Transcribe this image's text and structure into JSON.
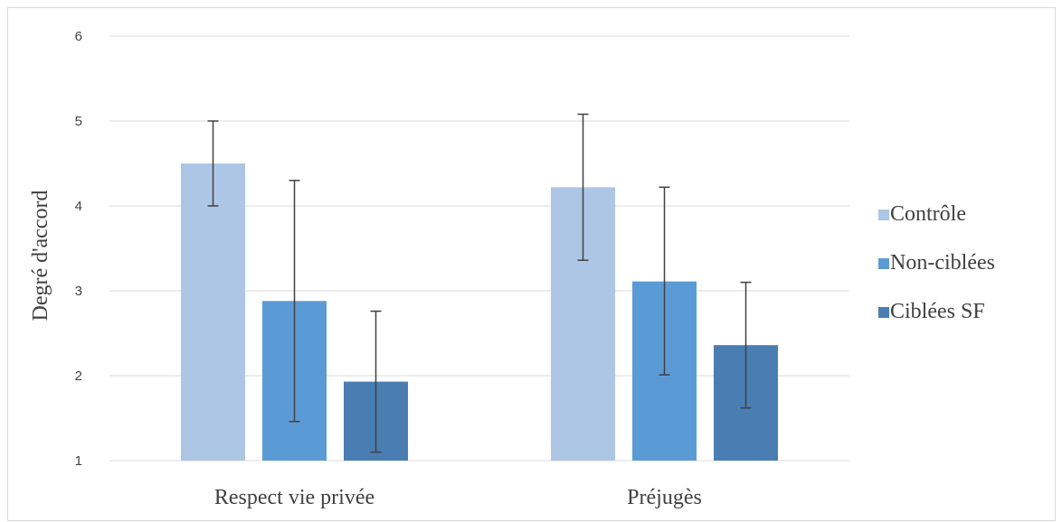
{
  "chart_data": {
    "type": "bar",
    "title": "",
    "xlabel": "",
    "ylabel": "Degré d'accord",
    "ylim": [
      1,
      6
    ],
    "yticks": [
      1,
      2,
      3,
      4,
      5,
      6
    ],
    "grid": true,
    "legend_position": "right",
    "categories": [
      "Respect vie privée",
      "Préjugès"
    ],
    "series": [
      {
        "name": "Contrôle",
        "color": "#adc6e5",
        "values": [
          4.5,
          4.22
        ],
        "error": [
          [
            4.0,
            5.0
          ],
          [
            3.36,
            5.08
          ]
        ]
      },
      {
        "name": "Non-ciblées",
        "color": "#5b9bd5",
        "values": [
          2.88,
          3.11
        ],
        "error": [
          [
            1.46,
            4.3
          ],
          [
            2.01,
            4.22
          ]
        ]
      },
      {
        "name": "Ciblées SF",
        "color": "#4a7eb3",
        "values": [
          1.93,
          2.36
        ],
        "error": [
          [
            1.1,
            2.76
          ],
          [
            1.62,
            3.1
          ]
        ]
      }
    ]
  }
}
